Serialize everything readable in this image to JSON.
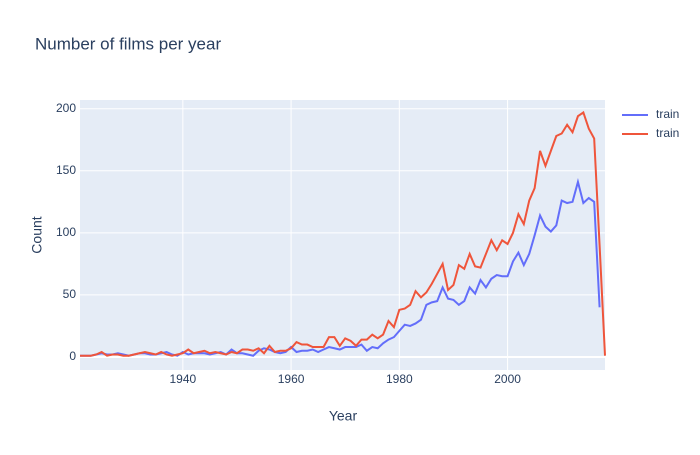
{
  "chart_data": {
    "type": "line",
    "title": "Number of films per year",
    "x_label": "Year",
    "y_label": "Count",
    "x": [
      1921,
      1922,
      1923,
      1924,
      1925,
      1926,
      1927,
      1928,
      1929,
      1930,
      1931,
      1932,
      1933,
      1934,
      1935,
      1936,
      1937,
      1938,
      1939,
      1940,
      1941,
      1942,
      1943,
      1944,
      1945,
      1946,
      1947,
      1948,
      1949,
      1950,
      1951,
      1952,
      1953,
      1954,
      1955,
      1956,
      1957,
      1958,
      1959,
      1960,
      1961,
      1962,
      1963,
      1964,
      1965,
      1966,
      1967,
      1968,
      1969,
      1970,
      1971,
      1972,
      1973,
      1974,
      1975,
      1976,
      1977,
      1978,
      1979,
      1980,
      1981,
      1982,
      1983,
      1984,
      1985,
      1986,
      1987,
      1988,
      1989,
      1990,
      1991,
      1992,
      1993,
      1994,
      1995,
      1996,
      1997,
      1998,
      1999,
      2000,
      2001,
      2002,
      2003,
      2004,
      2005,
      2006,
      2007,
      2008,
      2009,
      2010,
      2011,
      2012,
      2013,
      2014,
      2015,
      2016,
      2017,
      2018
    ],
    "series": [
      {
        "name": "train",
        "color": "#636efa",
        "values": [
          1,
          1,
          1,
          2,
          3,
          2,
          2,
          3,
          2,
          1,
          2,
          3,
          3,
          2,
          2,
          3,
          4,
          2,
          1,
          4,
          2,
          3,
          3,
          3,
          2,
          3,
          4,
          2,
          6,
          3,
          3,
          2,
          1,
          5,
          7,
          6,
          4,
          3,
          4,
          8,
          4,
          5,
          5,
          6,
          4,
          6,
          8,
          7,
          6,
          8,
          8,
          8,
          10,
          5,
          8,
          7,
          11,
          14,
          16,
          21,
          26,
          25,
          27,
          30,
          42,
          44,
          45,
          56,
          47,
          46,
          42,
          45,
          56,
          51,
          62,
          56,
          63,
          66,
          65,
          65,
          77,
          84,
          74,
          83,
          98,
          114,
          105,
          101,
          106,
          126,
          124,
          125,
          141,
          124,
          128,
          125,
          40,
          null
        ]
      },
      {
        "name": "train",
        "color": "#EF553B",
        "values": [
          1,
          1,
          1,
          2,
          4,
          1,
          2,
          2,
          1,
          1,
          2,
          3,
          4,
          3,
          2,
          4,
          2,
          1,
          2,
          3,
          6,
          3,
          4,
          5,
          3,
          4,
          3,
          2,
          4,
          3,
          6,
          6,
          5,
          7,
          3,
          9,
          4,
          5,
          5,
          7,
          12,
          10,
          10,
          8,
          8,
          8,
          16,
          16,
          9,
          15,
          13,
          9,
          14,
          14,
          18,
          15,
          18,
          29,
          24,
          38,
          39,
          42,
          53,
          48,
          52,
          59,
          67,
          75,
          54,
          58,
          74,
          71,
          83,
          73,
          72,
          83,
          94,
          86,
          94,
          91,
          100,
          115,
          107,
          126,
          136,
          166,
          154,
          166,
          178,
          180,
          187,
          181,
          194,
          197,
          184,
          176,
          90,
          1
        ]
      }
    ],
    "xlim": [
      1921,
      2018
    ],
    "ylim": [
      -10.5,
      207
    ],
    "xticks": [
      1940,
      1960,
      1980,
      2000
    ],
    "yticks": [
      0,
      50,
      100,
      150,
      200
    ],
    "grid": true
  }
}
